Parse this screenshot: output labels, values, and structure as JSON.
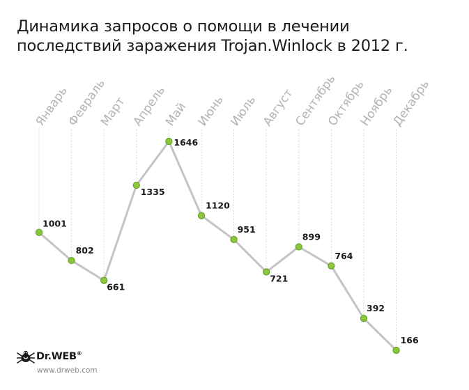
{
  "title_line1": "Динамика запросов о помощи в лечении",
  "title_line2": "последствий заражения Trojan.Winlock в 2012 г.",
  "logo": {
    "name": "Dr.WEB",
    "registered_mark": "®",
    "url": "www.drweb.com"
  },
  "colors": {
    "line": "#c4c4c4",
    "marker_fill": "#8cc63f",
    "marker_stroke": "#5a9a1c",
    "guide": "#cccccc",
    "month_text": "#b3b3b3"
  },
  "chart_data": {
    "type": "line",
    "title": "Динамика запросов о помощи в лечении последствий заражения Trojan.Winlock в 2012 г.",
    "categories": [
      "Январь",
      "Февраль",
      "Март",
      "Апрель",
      "Май",
      "Июнь",
      "Июль",
      "Август",
      "Сентябрь",
      "Октябрь",
      "Ноябрь",
      "Декабрь"
    ],
    "series": [
      {
        "values": [
          1001,
          802,
          661,
          1335,
          1646,
          1120,
          951,
          721,
          899,
          764,
          392,
          166
        ]
      }
    ],
    "data_labels": [
      "1001",
      "802",
      "661",
      "1335",
      "1646",
      "1120",
      "951",
      "721",
      "899",
      "764",
      "392",
      "166"
    ],
    "ylim": [
      166,
      1646
    ],
    "grid": false,
    "legend": "none"
  }
}
